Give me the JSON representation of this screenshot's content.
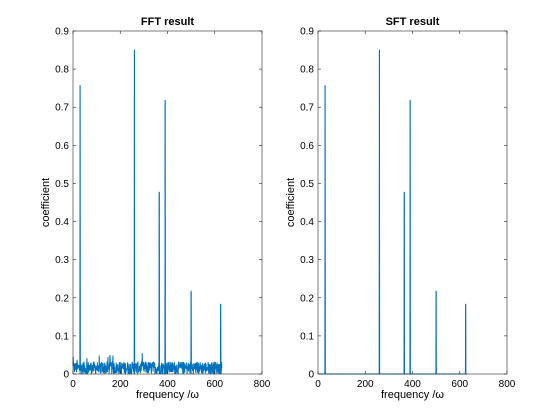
{
  "colors": {
    "series": "#0072bd",
    "axes": "#262626",
    "background": "#ffffff"
  },
  "chart_data": [
    {
      "type": "line",
      "title": "FFT result",
      "xlabel": "frequency /ω",
      "ylabel": "coefficient",
      "xlim": [
        0,
        800
      ],
      "ylim": [
        0,
        0.9
      ],
      "x_ticks": [
        0,
        200,
        400,
        600,
        800
      ],
      "y_ticks": [
        0,
        0.1,
        0.2,
        0.3,
        0.4,
        0.5,
        0.6,
        0.7,
        0.8,
        0.9
      ],
      "grid": false,
      "x_range": [
        0,
        630
      ],
      "peaks": [
        {
          "x": 30,
          "y": 0.757
        },
        {
          "x": 260,
          "y": 0.85
        },
        {
          "x": 365,
          "y": 0.477
        },
        {
          "x": 390,
          "y": 0.718
        },
        {
          "x": 500,
          "y": 0.217
        },
        {
          "x": 625,
          "y": 0.183
        }
      ],
      "noise_floor": {
        "typical": 0.02,
        "max": 0.055
      }
    },
    {
      "type": "line",
      "title": "SFT result",
      "xlabel": "frequency /ω",
      "ylabel": "coefficient",
      "xlim": [
        0,
        800
      ],
      "ylim": [
        0,
        0.9
      ],
      "x_ticks": [
        0,
        200,
        400,
        600,
        800
      ],
      "y_ticks": [
        0,
        0.1,
        0.2,
        0.3,
        0.4,
        0.5,
        0.6,
        0.7,
        0.8,
        0.9
      ],
      "grid": false,
      "x_range": [
        0,
        630
      ],
      "peaks": [
        {
          "x": 30,
          "y": 0.757
        },
        {
          "x": 260,
          "y": 0.85
        },
        {
          "x": 365,
          "y": 0.477
        },
        {
          "x": 390,
          "y": 0.718
        },
        {
          "x": 500,
          "y": 0.217
        },
        {
          "x": 625,
          "y": 0.183
        }
      ],
      "noise_floor": null
    }
  ]
}
